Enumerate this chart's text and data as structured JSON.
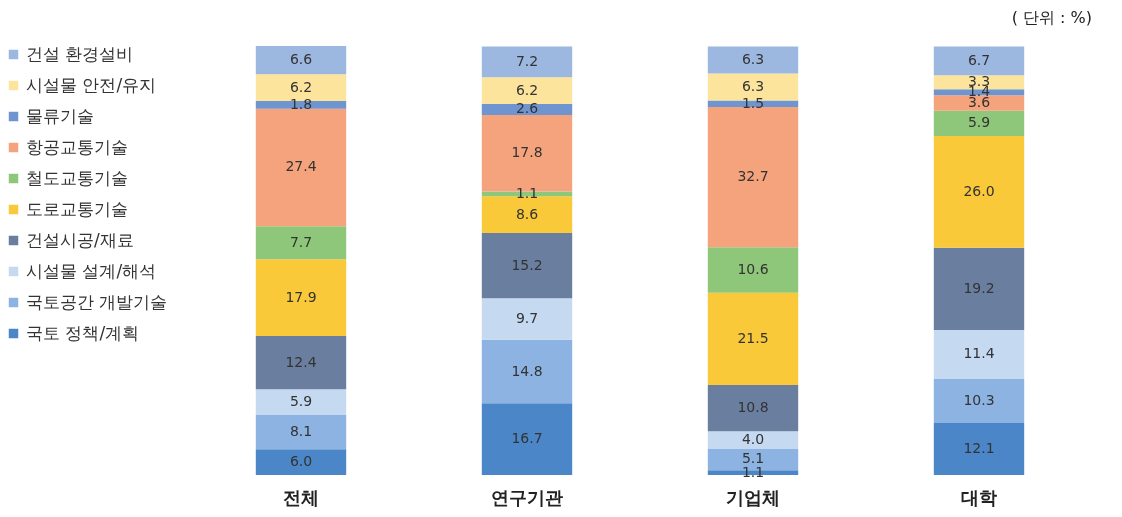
{
  "chart_data": {
    "type": "bar",
    "stacked": true,
    "legend": "left",
    "annotations": [
      "( 단위 : %)"
    ],
    "categories": [
      "전체",
      "연구기관",
      "기업체",
      "대학"
    ],
    "series": [
      {
        "name": "국토 정책/계획",
        "color": "#4a86c8",
        "values": [
          6.0,
          16.7,
          1.1,
          12.1
        ],
        "value_labels": [
          "6.0",
          "16.7",
          "1.1",
          "12.1"
        ]
      },
      {
        "name": "국토공간 개발기술",
        "color": "#8db3e2",
        "values": [
          8.1,
          14.8,
          5.1,
          10.3
        ],
        "value_labels": [
          "8.1",
          "14.8",
          "5.1",
          "10.3"
        ]
      },
      {
        "name": "시설물 설계/해석",
        "color": "#c5d9f1",
        "values": [
          5.9,
          9.7,
          4.0,
          11.4
        ],
        "value_labels": [
          "5.9",
          "9.7",
          "4.0",
          "11.4"
        ]
      },
      {
        "name": "건설시공/재료",
        "color": "#6a7f9f",
        "values": [
          12.4,
          15.2,
          10.8,
          19.2
        ],
        "value_labels": [
          "12.4",
          "15.2",
          "10.8",
          "19.2"
        ]
      },
      {
        "name": "도로교통기술",
        "color": "#f9c93a",
        "values": [
          17.9,
          8.6,
          21.5,
          26.0
        ],
        "value_labels": [
          "17.9",
          "8.6",
          "21.5",
          "26.0"
        ]
      },
      {
        "name": "철도교통기술",
        "color": "#8fc77a",
        "values": [
          7.7,
          1.1,
          10.6,
          5.9
        ],
        "value_labels": [
          "7.7",
          "1.1",
          "10.6",
          "5.9"
        ]
      },
      {
        "name": "항공교통기술",
        "color": "#f4a37c",
        "values": [
          27.4,
          17.8,
          32.7,
          3.6
        ],
        "value_labels": [
          "27.4",
          "17.8",
          "32.7",
          "3.6"
        ]
      },
      {
        "name": "물류기술",
        "color": "#6f95d0",
        "values": [
          1.8,
          2.6,
          1.5,
          1.4
        ],
        "value_labels": [
          "1.8",
          "2.6",
          "1.5",
          "1.4"
        ]
      },
      {
        "name": "시설물 안전/유지",
        "color": "#fde49c",
        "values": [
          6.2,
          6.2,
          6.3,
          3.3
        ],
        "value_labels": [
          "6.2",
          "6.2",
          "6.3",
          "3.3"
        ]
      },
      {
        "name": "건설 환경설비",
        "color": "#9db8e0",
        "values": [
          6.6,
          7.2,
          6.3,
          6.7
        ],
        "value_labels": [
          "6.6",
          "7.2",
          "6.3",
          "6.7"
        ]
      }
    ]
  }
}
